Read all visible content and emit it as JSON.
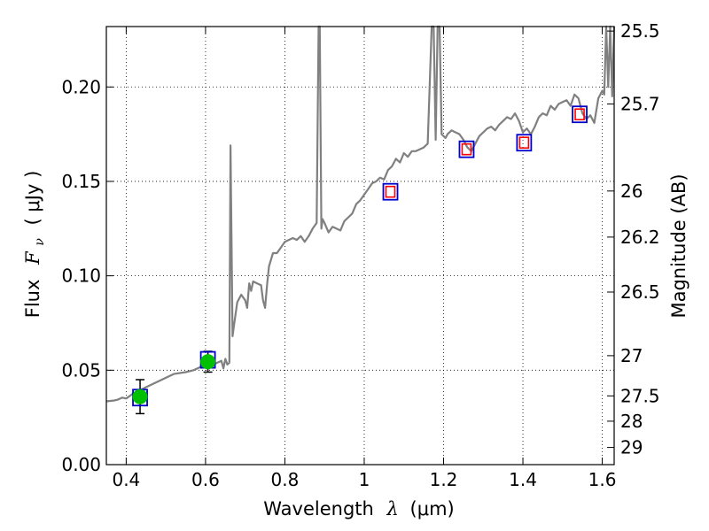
{
  "chart_data": {
    "type": "line",
    "xlabel": {
      "prefix": "Wavelength",
      "symbol": "λ",
      "unit": "(μm)"
    },
    "ylabel": {
      "prefix": "Flux",
      "symbol": "F",
      "subscript": "ν",
      "unit": "( μJy )"
    },
    "y2label": "Magnitude (AB)",
    "xlim": [
      0.35,
      1.63
    ],
    "ylim": [
      0.0,
      0.232
    ],
    "xticks": [
      0.4,
      0.6,
      0.8,
      1.0,
      1.2,
      1.4,
      1.6
    ],
    "xtick_labels": [
      "0.4",
      "0.6",
      "0.8",
      "1",
      "1.2",
      "1.4",
      "1.6"
    ],
    "yticks": [
      0.0,
      0.05,
      0.1,
      0.15,
      0.2
    ],
    "ytick_labels": [
      "0.00",
      "0.05",
      "0.10",
      "0.15",
      "0.20"
    ],
    "y2ticks": [
      {
        "label": "25.5",
        "flux": 0.2296
      },
      {
        "label": "25.7",
        "flux": 0.191
      },
      {
        "label": "26",
        "flux": 0.1449
      },
      {
        "label": "26.2",
        "flux": 0.1205
      },
      {
        "label": "26.5",
        "flux": 0.0914
      },
      {
        "label": "27",
        "flux": 0.0577
      },
      {
        "label": "27.5",
        "flux": 0.0364
      },
      {
        "label": "28",
        "flux": 0.023
      },
      {
        "label": "29",
        "flux": 0.0091
      }
    ],
    "grid": true,
    "series": [
      {
        "kind": "model_spectrum",
        "color": "#808080",
        "x": [
          0.35,
          0.37,
          0.38,
          0.39,
          0.4,
          0.42,
          0.44,
          0.45,
          0.47,
          0.48,
          0.5,
          0.52,
          0.55,
          0.57,
          0.59,
          0.61,
          0.62,
          0.63,
          0.64,
          0.645,
          0.65,
          0.655,
          0.66,
          0.663,
          0.668,
          0.672,
          0.68,
          0.69,
          0.7,
          0.705,
          0.71,
          0.715,
          0.72,
          0.73,
          0.74,
          0.745,
          0.75,
          0.755,
          0.76,
          0.77,
          0.78,
          0.79,
          0.8,
          0.81,
          0.82,
          0.83,
          0.84,
          0.85,
          0.86,
          0.87,
          0.88,
          0.885,
          0.888,
          0.892,
          0.895,
          0.9,
          0.91,
          0.92,
          0.93,
          0.94,
          0.95,
          0.96,
          0.97,
          0.98,
          0.99,
          1.0,
          1.01,
          1.02,
          1.03,
          1.04,
          1.05,
          1.06,
          1.07,
          1.08,
          1.09,
          1.1,
          1.11,
          1.12,
          1.13,
          1.14,
          1.15,
          1.16,
          1.17,
          1.175,
          1.18,
          1.185,
          1.19,
          1.195,
          1.2,
          1.205,
          1.21,
          1.22,
          1.23,
          1.24,
          1.25,
          1.26,
          1.27,
          1.28,
          1.29,
          1.3,
          1.31,
          1.32,
          1.33,
          1.34,
          1.35,
          1.36,
          1.37,
          1.38,
          1.39,
          1.4,
          1.41,
          1.42,
          1.43,
          1.44,
          1.45,
          1.46,
          1.47,
          1.48,
          1.49,
          1.5,
          1.51,
          1.52,
          1.53,
          1.54,
          1.55,
          1.56,
          1.57,
          1.58,
          1.59,
          1.6,
          1.605,
          1.61,
          1.615,
          1.62,
          1.625,
          1.63
        ],
        "y": [
          0.0335,
          0.034,
          0.0345,
          0.0355,
          0.035,
          0.038,
          0.04,
          0.041,
          0.043,
          0.044,
          0.046,
          0.048,
          0.049,
          0.05,
          0.052,
          0.055,
          0.053,
          0.054,
          0.055,
          0.051,
          0.056,
          0.053,
          0.054,
          0.169,
          0.068,
          0.074,
          0.086,
          0.09,
          0.087,
          0.083,
          0.096,
          0.092,
          0.097,
          0.096,
          0.095,
          0.087,
          0.083,
          0.095,
          0.105,
          0.112,
          0.112,
          0.115,
          0.118,
          0.119,
          0.12,
          0.119,
          0.121,
          0.118,
          0.121,
          0.125,
          0.128,
          0.232,
          0.232,
          0.125,
          0.13,
          0.128,
          0.123,
          0.126,
          0.125,
          0.124,
          0.129,
          0.131,
          0.133,
          0.138,
          0.14,
          0.143,
          0.146,
          0.149,
          0.15,
          0.152,
          0.151,
          0.156,
          0.158,
          0.162,
          0.16,
          0.165,
          0.163,
          0.166,
          0.166,
          0.167,
          0.168,
          0.17,
          0.232,
          0.232,
          0.172,
          0.232,
          0.232,
          0.175,
          0.174,
          0.173,
          0.175,
          0.177,
          0.176,
          0.175,
          0.172,
          0.168,
          0.166,
          0.17,
          0.174,
          0.176,
          0.178,
          0.179,
          0.177,
          0.18,
          0.182,
          0.184,
          0.183,
          0.186,
          0.182,
          0.176,
          0.178,
          0.175,
          0.179,
          0.184,
          0.186,
          0.185,
          0.19,
          0.188,
          0.191,
          0.192,
          0.193,
          0.19,
          0.196,
          0.194,
          0.186,
          0.183,
          0.185,
          0.181,
          0.194,
          0.198,
          0.196,
          0.232,
          0.2,
          0.232,
          0.195,
          0.232
        ]
      },
      {
        "kind": "measured_photometry",
        "marker": "circle",
        "color": "#00c000",
        "points": [
          {
            "x": 0.435,
            "y": 0.036,
            "yerr_low": 0.009,
            "yerr_high": 0.009
          },
          {
            "x": 0.606,
            "y": 0.0545,
            "yerr_low": 0.0055,
            "yerr_high": 0.0055
          }
        ]
      },
      {
        "kind": "model_photometry",
        "marker": "square",
        "color": "#0000cc",
        "points": [
          {
            "x": 0.435,
            "y": 0.0355
          },
          {
            "x": 0.606,
            "y": 0.0555
          },
          {
            "x": 1.066,
            "y": 0.1445
          },
          {
            "x": 1.258,
            "y": 0.167
          },
          {
            "x": 1.403,
            "y": 0.1705
          },
          {
            "x": 1.543,
            "y": 0.1855
          }
        ]
      },
      {
        "kind": "upper_limits",
        "marker": "square",
        "color": "#ff0000",
        "points": [
          {
            "x": 1.066,
            "y": 0.1445
          },
          {
            "x": 1.258,
            "y": 0.167
          },
          {
            "x": 1.403,
            "y": 0.1705
          },
          {
            "x": 1.543,
            "y": 0.1855
          }
        ]
      }
    ]
  }
}
